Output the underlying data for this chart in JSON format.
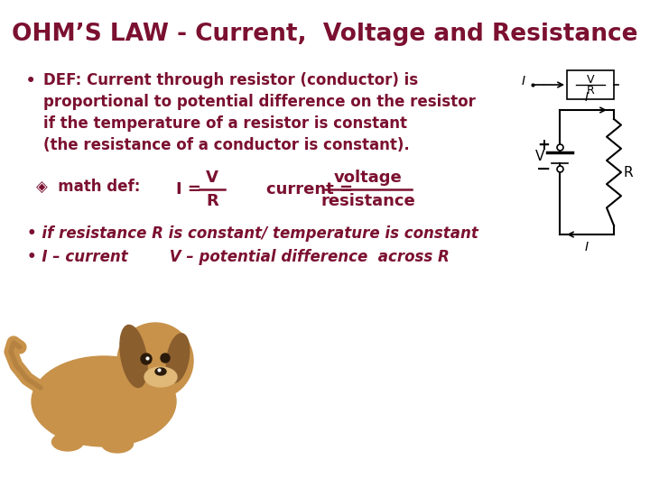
{
  "title": "OHM’S LAW - Current,  Voltage and Resistance",
  "title_color": "#7B1030",
  "bg_color": "#FFFFFF",
  "text_color": "#7B1030",
  "bullet_lines": [
    "DEF: Current through resistor (conductor) is",
    "proportional to potential difference on the resistor",
    "if the temperature of a resistor is constant",
    "(the resistance of a conductor is constant)."
  ],
  "math_label": "◈  math def:",
  "italic_line1": "• if resistance R is constant/ temperature is constant",
  "italic_line2": "• I – current        V – potential difference  across R"
}
